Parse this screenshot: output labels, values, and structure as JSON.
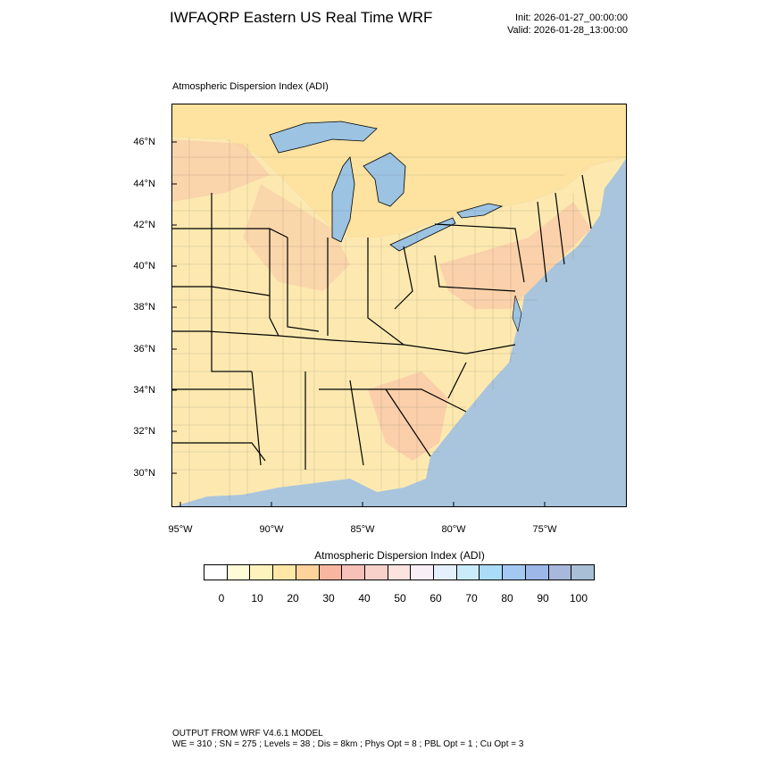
{
  "header": {
    "title": "IWFAQRP Eastern US Real Time WRF",
    "init": "Init: 2026-01-27_00:00:00",
    "valid": "Valid: 2026-01-28_13:00:00"
  },
  "map": {
    "field_label": "Atmospheric Dispersion Index   (ADI)",
    "lat_labels": [
      "46°N",
      "44°N",
      "42°N",
      "40°N",
      "38°N",
      "36°N",
      "34°N",
      "32°N",
      "30°N"
    ],
    "lon_labels": [
      "95°W",
      "90°W",
      "85°W",
      "80°W",
      "75°W"
    ],
    "colors": {
      "ocean": "#a9c5dd",
      "land": "#fde9b0",
      "land_warm": "#f8c6a8",
      "canada": "#fde2a0",
      "lakes": "#9cc3e2"
    }
  },
  "colorbar": {
    "title": "Atmospheric Dispersion Index  (ADI)",
    "labels": [
      "0",
      "10",
      "20",
      "30",
      "40",
      "50",
      "60",
      "70",
      "80",
      "90",
      "100"
    ],
    "colors": [
      "#ffffff",
      "#fffbd6",
      "#fff3bd",
      "#ffe7a6",
      "#fdd39b",
      "#f8b6a0",
      "#f7c0b8",
      "#f9d1cb",
      "#fce3df",
      "#f7eff5",
      "#e4f0fb",
      "#c9ebfa",
      "#abdcf7",
      "#a3c9f2",
      "#9cb7e8",
      "#a8b8dc",
      "#a9bfd6"
    ]
  },
  "footer": {
    "line1": "OUTPUT FROM WRF V4.6.1 MODEL",
    "line2": "WE = 310 ; SN = 275 ; Levels = 38 ; Dis = 8km ; Phys Opt = 8 ; PBL Opt = 1 ; Cu Opt = 3"
  }
}
